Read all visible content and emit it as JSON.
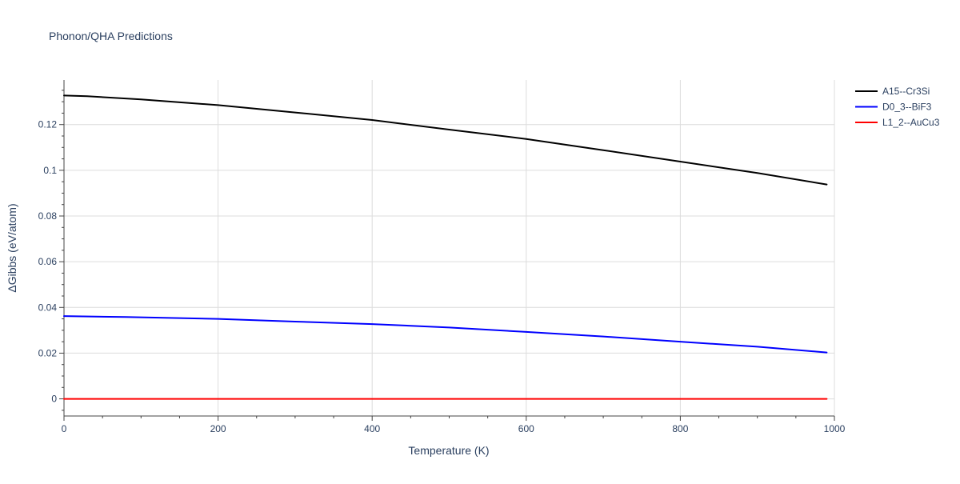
{
  "chart_data": {
    "type": "line",
    "title": "Phonon/QHA Predictions",
    "xlabel": "Temperature (K)",
    "ylabel": "ΔGibbs (eV/atom)",
    "xlim": [
      0,
      1000
    ],
    "ylim": [
      -0.0075,
      0.1395
    ],
    "xticks": [
      0,
      200,
      400,
      600,
      800,
      1000
    ],
    "xtick_labels": [
      "0",
      "200",
      "400",
      "600",
      "800",
      "1000"
    ],
    "x_minor_ticks": [
      50,
      100,
      150,
      250,
      300,
      350,
      450,
      500,
      550,
      650,
      700,
      750,
      850,
      900,
      950
    ],
    "yticks": [
      0,
      0.02,
      0.04,
      0.06,
      0.08,
      0.1,
      0.12
    ],
    "ytick_labels": [
      "0",
      "0.02",
      "0.04",
      "0.06",
      "0.08",
      "0.1",
      "0.12"
    ],
    "y_minor_ticks": [
      -0.005,
      0.005,
      0.01,
      0.015,
      0.025,
      0.03,
      0.035,
      0.045,
      0.05,
      0.055,
      0.065,
      0.07,
      0.075,
      0.085,
      0.09,
      0.095,
      0.105,
      0.11,
      0.115,
      0.125,
      0.13,
      0.135
    ],
    "grid": true,
    "legend_position": "top-right",
    "series": [
      {
        "name": "A15--Cr3Si",
        "color": "#000000",
        "x": [
          0,
          30,
          100,
          200,
          300,
          400,
          500,
          600,
          700,
          800,
          900,
          990
        ],
        "y": [
          0.1327,
          0.1324,
          0.131,
          0.1285,
          0.1253,
          0.122,
          0.1178,
          0.1137,
          0.1088,
          0.1038,
          0.0988,
          0.0938
        ]
      },
      {
        "name": "D0_3--BiF3",
        "color": "#0000ff",
        "x": [
          0,
          80,
          200,
          300,
          400,
          500,
          600,
          700,
          800,
          900,
          990
        ],
        "y": [
          0.0362,
          0.0358,
          0.035,
          0.0338,
          0.0327,
          0.0312,
          0.0293,
          0.0273,
          0.025,
          0.0228,
          0.0203
        ]
      },
      {
        "name": "L1_2--AuCu3",
        "color": "#ff0000",
        "x": [
          0,
          200,
          400,
          600,
          800,
          990
        ],
        "y": [
          0,
          0,
          0,
          0,
          0,
          0
        ]
      }
    ]
  }
}
